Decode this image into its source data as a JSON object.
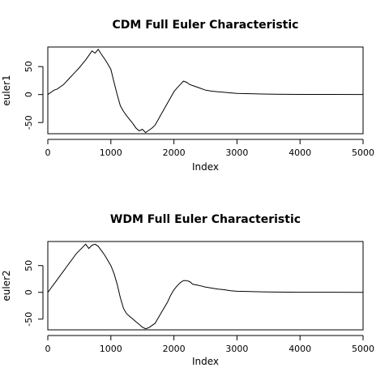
{
  "chart_data": [
    {
      "type": "line",
      "title": "CDM Full Euler Characteristic",
      "xlabel": "Index",
      "ylabel": "euler1",
      "xlim": [
        0,
        5000
      ],
      "ylim": [
        -70,
        85
      ],
      "xticks": [
        0,
        1000,
        2000,
        3000,
        4000,
        5000
      ],
      "yticks": [
        -50,
        0,
        50
      ],
      "grid": false,
      "series": [
        {
          "x": [
            0,
            50,
            100,
            150,
            200,
            250,
            300,
            350,
            400,
            450,
            500,
            550,
            600,
            650,
            700,
            750,
            800,
            850,
            900,
            950,
            1000,
            1050,
            1100,
            1150,
            1200,
            1250,
            1300,
            1350,
            1400,
            1450,
            1500,
            1550,
            1600,
            1650,
            1700,
            1750,
            1800,
            1850,
            1900,
            1950,
            2000,
            2050,
            2100,
            2150,
            2200,
            2250,
            2300,
            2400,
            2500,
            2600,
            2700,
            2800,
            2900,
            3000,
            3200,
            3400,
            3600,
            4000,
            4500,
            5000
          ],
          "y": [
            0,
            4,
            8,
            10,
            14,
            18,
            24,
            30,
            36,
            42,
            48,
            55,
            62,
            70,
            78,
            74,
            81,
            72,
            64,
            55,
            45,
            22,
            0,
            -20,
            -30,
            -38,
            -45,
            -52,
            -60,
            -65,
            -62,
            -68,
            -64,
            -60,
            -55,
            -45,
            -35,
            -25,
            -15,
            -5,
            5,
            12,
            18,
            24,
            22,
            18,
            16,
            12,
            8,
            6,
            5,
            4,
            3,
            2,
            1.5,
            1,
            0.5,
            0.3,
            0.2,
            0.1
          ]
        }
      ]
    },
    {
      "type": "line",
      "title": "WDM Full Euler Characteristic",
      "xlabel": "Index",
      "ylabel": "euler2",
      "xlim": [
        0,
        5000
      ],
      "ylim": [
        -70,
        95
      ],
      "xticks": [
        0,
        1000,
        2000,
        3000,
        4000,
        5000
      ],
      "yticks": [
        -50,
        0,
        50
      ],
      "grid": false,
      "series": [
        {
          "x": [
            0,
            50,
            100,
            150,
            200,
            250,
            300,
            350,
            400,
            450,
            500,
            550,
            600,
            650,
            700,
            750,
            800,
            850,
            900,
            950,
            1000,
            1050,
            1100,
            1150,
            1200,
            1250,
            1300,
            1350,
            1400,
            1450,
            1500,
            1550,
            1600,
            1650,
            1700,
            1750,
            1800,
            1850,
            1900,
            1950,
            2000,
            2050,
            2100,
            2150,
            2200,
            2250,
            2300,
            2400,
            2500,
            2600,
            2700,
            2800,
            2900,
            3000,
            3200,
            3400,
            3600,
            4000,
            4500,
            5000
          ],
          "y": [
            0,
            8,
            16,
            24,
            32,
            40,
            48,
            56,
            64,
            72,
            78,
            84,
            90,
            82,
            88,
            90,
            86,
            78,
            70,
            60,
            50,
            35,
            15,
            -10,
            -30,
            -40,
            -45,
            -50,
            -55,
            -60,
            -65,
            -68,
            -66,
            -62,
            -58,
            -48,
            -38,
            -28,
            -18,
            -5,
            5,
            12,
            18,
            22,
            22,
            20,
            15,
            13,
            10,
            8,
            6,
            5,
            3,
            2,
            1.5,
            1,
            0.5,
            0.3,
            0.2,
            0.1
          ]
        }
      ]
    }
  ]
}
